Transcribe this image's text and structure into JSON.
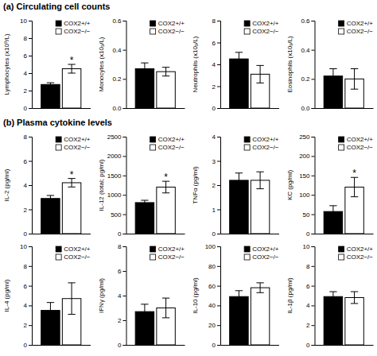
{
  "chart_data": [
    {
      "type": "bar",
      "title": "(a) Circulating cell counts",
      "y_label": "Lymphocytes (x10⁹/L)",
      "categories": [
        null
      ],
      "series": [
        {
          "name": "COX2+/+",
          "color": "#000000",
          "values": [
            2.7
          ],
          "errors": [
            0.2
          ]
        },
        {
          "name": "COX2−/−",
          "color": "#ffffff",
          "values": [
            4.5
          ],
          "errors": [
            0.5
          ]
        }
      ],
      "ylim": [
        0,
        10
      ],
      "yticks": [
        0,
        2,
        4,
        6,
        8,
        10
      ],
      "grid": false,
      "legend": "upper right",
      "tick_labels": "y",
      "annotations": [
        {
          "text": "*",
          "series": 1
        }
      ]
    },
    {
      "type": "bar",
      "y_label": "Monocytes (x10₉/L)",
      "categories": [
        null
      ],
      "series": [
        {
          "name": "COX2+/+",
          "color": "#000000",
          "values": [
            0.27
          ],
          "errors": [
            0.04
          ]
        },
        {
          "name": "COX2−/−",
          "color": "#ffffff",
          "values": [
            0.25
          ],
          "errors": [
            0.03
          ]
        }
      ],
      "ylim": [
        0,
        0.6
      ],
      "yticks": [
        {
          "value": 0,
          "label": "0.0"
        },
        0.2,
        0.4,
        0.6
      ],
      "grid": false,
      "legend": "upper right",
      "tick_labels": "y"
    },
    {
      "type": "bar",
      "y_label": "Neutrophils (x10₉/L)",
      "categories": [
        null
      ],
      "series": [
        {
          "name": "COX2+/+",
          "color": "#000000",
          "values": [
            4.5
          ],
          "errors": [
            0.6
          ]
        },
        {
          "name": "COX2−/−",
          "color": "#ffffff",
          "values": [
            3.1
          ],
          "errors": [
            0.8
          ]
        }
      ],
      "ylim": [
        0,
        8
      ],
      "yticks": [
        0,
        2,
        4,
        6,
        8
      ],
      "grid": false,
      "legend": "upper right",
      "tick_labels": "y"
    },
    {
      "type": "bar",
      "y_label": "Eosinophils (x10₉/L)",
      "categories": [
        null
      ],
      "series": [
        {
          "name": "COX2+/+",
          "color": "#000000",
          "values": [
            0.22
          ],
          "errors": [
            0.05
          ]
        },
        {
          "name": "COX2−/−",
          "color": "#ffffff",
          "values": [
            0.2
          ],
          "errors": [
            0.07
          ]
        }
      ],
      "ylim": [
        0,
        0.6
      ],
      "yticks": [
        {
          "value": 0,
          "label": "0.0"
        },
        0.2,
        0.4,
        0.6
      ],
      "grid": false,
      "legend": "upper right",
      "tick_labels": "y"
    },
    {
      "type": "bar",
      "title": "(b) Plasma cytokine levels",
      "y_label": "IL-2 (pg/ml)",
      "categories": [
        null
      ],
      "series": [
        {
          "name": "COX2+/+",
          "color": "#000000",
          "values": [
            2.9
          ],
          "errors": [
            0.25
          ]
        },
        {
          "name": "COX2−/−",
          "color": "#ffffff",
          "values": [
            4.2
          ],
          "errors": [
            0.35
          ]
        }
      ],
      "ylim": [
        0,
        8
      ],
      "yticks": [
        0,
        2,
        4,
        6,
        8
      ],
      "grid": false,
      "legend": "upper right",
      "tick_labels": "y",
      "annotations": [
        {
          "text": "*",
          "series": 1
        }
      ]
    },
    {
      "type": "bar",
      "y_label": "IL-12 (total; pg/ml)",
      "categories": [
        null
      ],
      "series": [
        {
          "name": "COX2+/+",
          "color": "#000000",
          "values": [
            800
          ],
          "errors": [
            60
          ]
        },
        {
          "name": "COX2−/−",
          "color": "#ffffff",
          "values": [
            1200
          ],
          "errors": [
            150
          ]
        }
      ],
      "ylim": [
        0,
        2500
      ],
      "yticks": [
        0,
        500,
        1000,
        1500,
        2000,
        2500
      ],
      "grid": false,
      "legend": "upper right",
      "tick_labels": "y",
      "annotations": [
        {
          "text": "*",
          "series": 1
        }
      ]
    },
    {
      "type": "bar",
      "y_label": "TNFα (pg/ml)",
      "categories": [
        null
      ],
      "series": [
        {
          "name": "COX2+/+",
          "color": "#000000",
          "values": [
            2.2
          ],
          "errors": [
            0.3
          ]
        },
        {
          "name": "COX2−/−",
          "color": "#ffffff",
          "values": [
            2.2
          ],
          "errors": [
            0.35
          ]
        }
      ],
      "ylim": [
        0,
        4
      ],
      "yticks": [
        0,
        1,
        2,
        3,
        4
      ],
      "grid": false,
      "legend": "upper right",
      "tick_labels": "y"
    },
    {
      "type": "bar",
      "y_label": "KC (pg/ml)",
      "categories": [
        null
      ],
      "series": [
        {
          "name": "COX2+/+",
          "color": "#000000",
          "values": [
            57
          ],
          "errors": [
            15
          ]
        },
        {
          "name": "COX2−/−",
          "color": "#ffffff",
          "values": [
            120
          ],
          "errors": [
            25
          ]
        }
      ],
      "ylim": [
        0,
        250
      ],
      "yticks": [
        0,
        50,
        100,
        150,
        200,
        250
      ],
      "grid": false,
      "legend": "upper right",
      "tick_labels": "y",
      "annotations": [
        {
          "text": "*",
          "series": 1
        }
      ]
    },
    {
      "type": "bar",
      "y_label": "IL-4 (pg/ml)",
      "categories": [
        null
      ],
      "series": [
        {
          "name": "COX2+/+",
          "color": "#000000",
          "values": [
            3.5
          ],
          "errors": [
            0.8
          ]
        },
        {
          "name": "COX2−/−",
          "color": "#ffffff",
          "values": [
            4.7
          ],
          "errors": [
            1.6
          ]
        }
      ],
      "ylim": [
        0,
        10
      ],
      "yticks": [
        0,
        2,
        4,
        6,
        8,
        10
      ],
      "grid": false,
      "legend": "upper right",
      "tick_labels": "y"
    },
    {
      "type": "bar",
      "y_label": "IFNγ (pg/ml)",
      "categories": [
        null
      ],
      "series": [
        {
          "name": "COX2+/+",
          "color": "#000000",
          "values": [
            2.7
          ],
          "errors": [
            0.6
          ]
        },
        {
          "name": "COX2−/−",
          "color": "#ffffff",
          "values": [
            3.0
          ],
          "errors": [
            0.8
          ]
        }
      ],
      "ylim": [
        0,
        8
      ],
      "yticks": [
        0,
        2,
        4,
        6,
        8
      ],
      "grid": false,
      "legend": "upper right",
      "tick_labels": "y"
    },
    {
      "type": "bar",
      "y_label": "IL-10 (pg/ml)",
      "categories": [
        null
      ],
      "series": [
        {
          "name": "COX2+/+",
          "color": "#000000",
          "values": [
            49
          ],
          "errors": [
            6
          ]
        },
        {
          "name": "COX2−/−",
          "color": "#ffffff",
          "values": [
            58
          ],
          "errors": [
            5
          ]
        }
      ],
      "ylim": [
        0,
        100
      ],
      "yticks": [
        0,
        20,
        40,
        60,
        80,
        100
      ],
      "grid": false,
      "legend": "upper right",
      "tick_labels": "y"
    },
    {
      "type": "bar",
      "y_label": "IL-1β (pg/ml)",
      "categories": [
        null
      ],
      "series": [
        {
          "name": "COX2+/+",
          "color": "#000000",
          "values": [
            4.9
          ],
          "errors": [
            0.5
          ]
        },
        {
          "name": "COX2−/−",
          "color": "#ffffff",
          "values": [
            4.8
          ],
          "errors": [
            0.6
          ]
        }
      ],
      "ylim": [
        0,
        10
      ],
      "yticks": [
        0,
        2,
        4,
        6,
        8,
        10
      ],
      "grid": false,
      "legend": "upper right",
      "tick_labels": "y"
    }
  ]
}
